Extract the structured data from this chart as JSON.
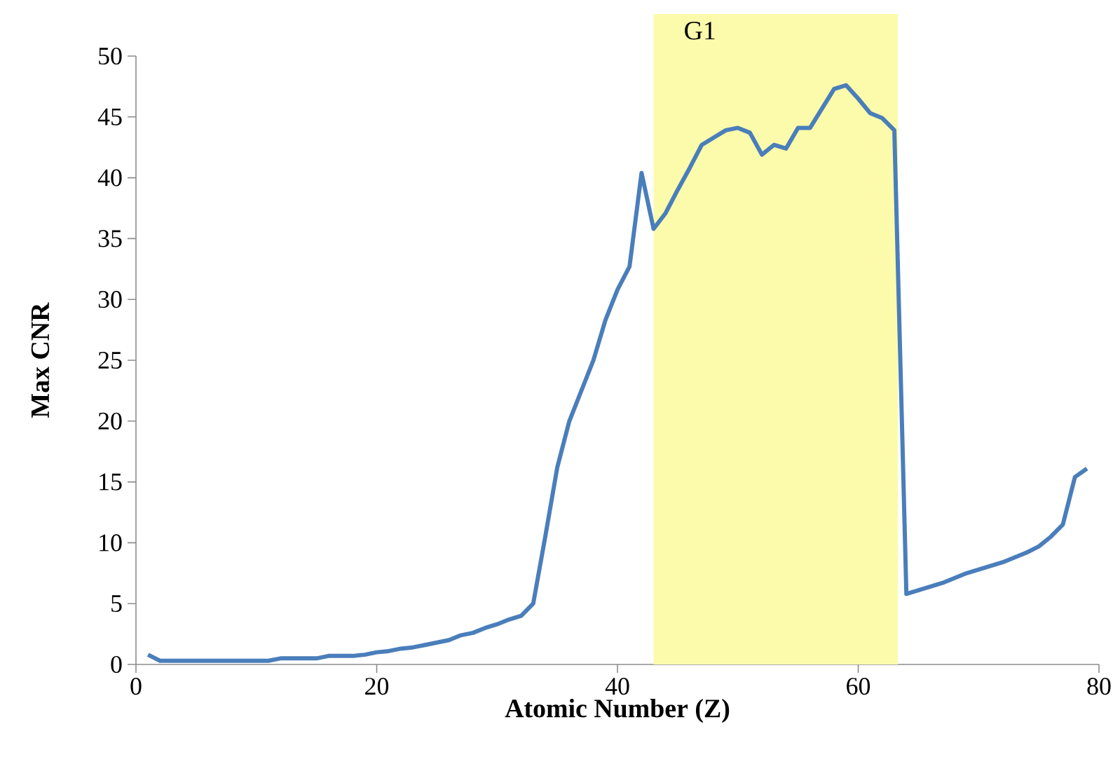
{
  "chart_data": {
    "type": "line",
    "xlabel": "Atomic Number (Z)",
    "ylabel": "Max CNR",
    "x": [
      1,
      2,
      3,
      4,
      5,
      6,
      7,
      8,
      9,
      10,
      11,
      12,
      13,
      14,
      15,
      16,
      17,
      18,
      19,
      20,
      21,
      22,
      23,
      24,
      25,
      26,
      27,
      28,
      29,
      30,
      31,
      32,
      33,
      34,
      35,
      36,
      37,
      38,
      39,
      40,
      41,
      42,
      43,
      44,
      45,
      46,
      47,
      48,
      49,
      50,
      51,
      52,
      53,
      54,
      55,
      56,
      57,
      58,
      59,
      60,
      61,
      62,
      63,
      64,
      65,
      66,
      67,
      68,
      69,
      70,
      71,
      72,
      73,
      74,
      75,
      76,
      77,
      78,
      79
    ],
    "series": [
      {
        "color": "#4a7ebb",
        "values": [
          0.8,
          0.3,
          0.3,
          0.3,
          0.3,
          0.3,
          0.3,
          0.3,
          0.3,
          0.3,
          0.3,
          0.5,
          0.5,
          0.5,
          0.5,
          0.7,
          0.7,
          0.7,
          0.8,
          1.0,
          1.1,
          1.3,
          1.4,
          1.6,
          1.8,
          2.0,
          2.4,
          2.6,
          3.0,
          3.3,
          3.7,
          4.0,
          5.0,
          10.5,
          16.2,
          20.0,
          22.5,
          25.0,
          28.3,
          30.8,
          32.7,
          40.4,
          35.8,
          37.1,
          39.0,
          40.8,
          42.7,
          43.3,
          43.9,
          44.1,
          43.7,
          41.9,
          42.7,
          42.4,
          44.1,
          44.1,
          45.7,
          47.3,
          47.6,
          46.5,
          45.3,
          44.9,
          43.9,
          5.8,
          6.1,
          6.4,
          6.7,
          7.1,
          7.5,
          7.8,
          8.1,
          8.4,
          8.8,
          9.2,
          9.7,
          10.5,
          11.5,
          15.4,
          16.1
        ]
      }
    ],
    "xlim": [
      0,
      80
    ],
    "xticks": [
      0,
      20,
      40,
      60,
      80
    ],
    "ylim": [
      0,
      50
    ],
    "yticks": [
      0,
      5,
      10,
      15,
      20,
      25,
      30,
      35,
      40,
      45,
      50
    ],
    "bands": [
      {
        "axis": "x",
        "from": 43,
        "to": 63.3,
        "label": "G1",
        "color": "#fbfbab"
      }
    ],
    "grid": false,
    "marker": "none",
    "line_style": "solid"
  }
}
